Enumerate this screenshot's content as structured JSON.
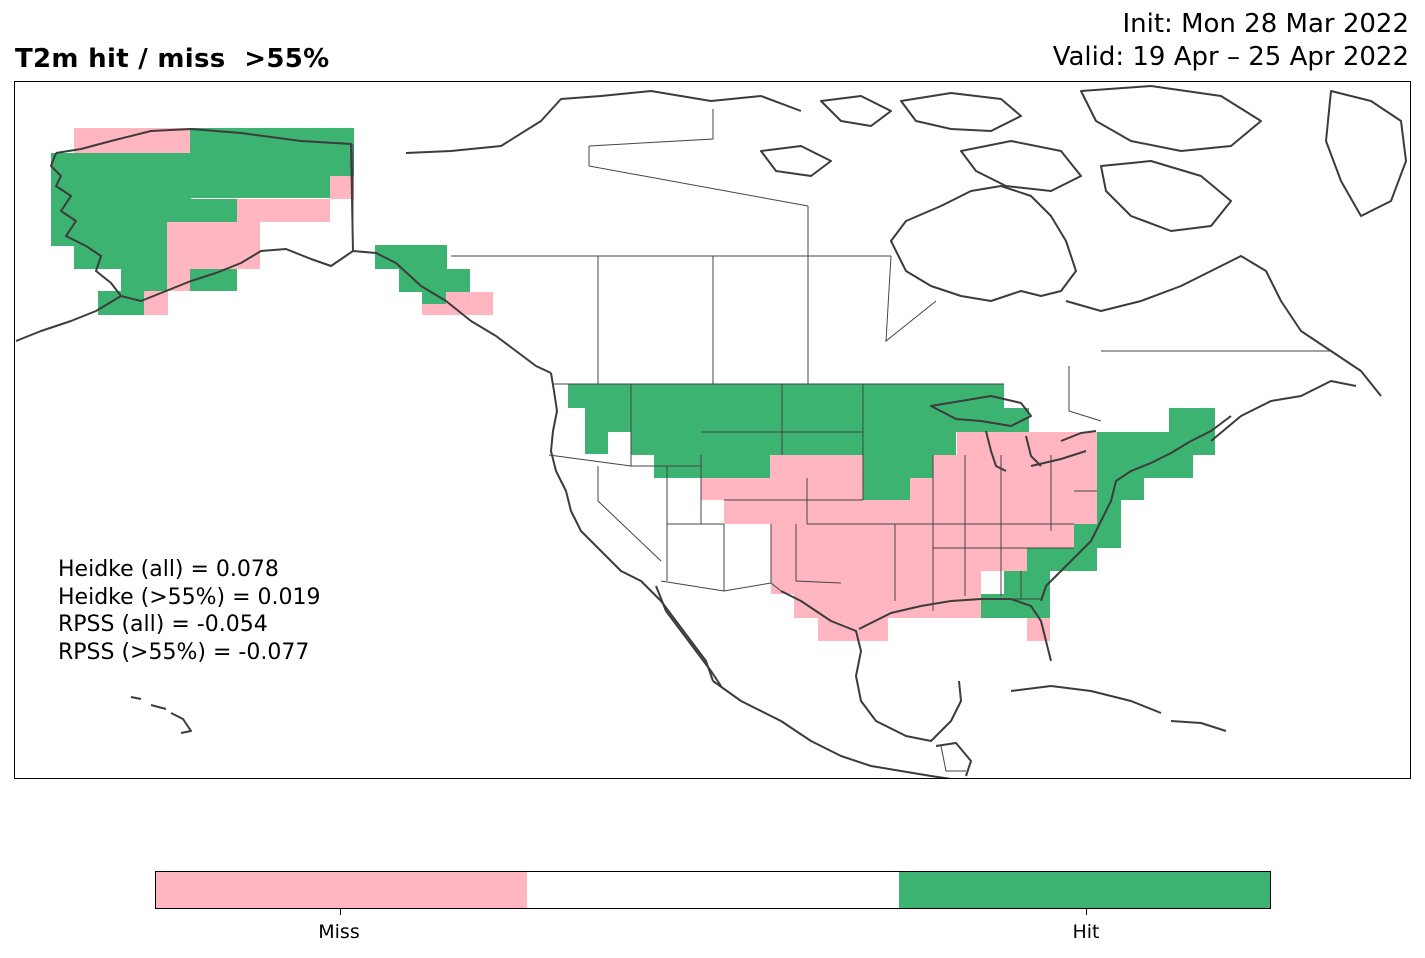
{
  "title": "T2m hit / miss  >55%",
  "init_label": "Init: Mon 28 Mar 2022",
  "valid_label": "Valid: 19 Apr – 25 Apr 2022",
  "stats": [
    "Heidke (all) = 0.078",
    "Heidke (>55%) = 0.019",
    "RPSS (all) = -0.054",
    "RPSS (>55%) = -0.077"
  ],
  "colorbar": {
    "labels": [
      "Miss",
      "Hit"
    ],
    "colors": [
      "#ffb6c1",
      "#ffffff",
      "#3cb371"
    ]
  },
  "colors": {
    "miss": "#ffb6c1",
    "hit": "#3cb371",
    "border": "#3c3c3c"
  }
}
